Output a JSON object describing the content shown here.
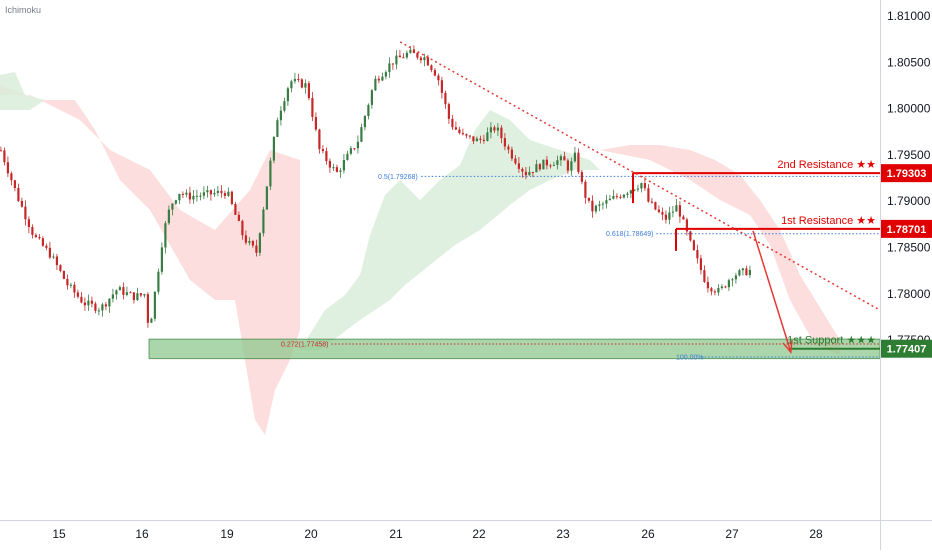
{
  "indicator_label": "Ichimoku",
  "chart_data": {
    "type": "candlestick",
    "x_ticks": [
      "15",
      "16",
      "19",
      "20",
      "21",
      "22",
      "23",
      "26",
      "27",
      "28"
    ],
    "y_ticks": [
      "1.81000",
      "1.80500",
      "1.80000",
      "1.79500",
      "1.79000",
      "1.78500",
      "1.78000",
      "1.77500"
    ],
    "ylim": [
      1.7707,
      1.8122
    ],
    "colors": {
      "up": "#26a69a",
      "up_body": "#3a7d44",
      "down": "#c62828",
      "resistance": "#e00000",
      "support": "#2e7d32",
      "support_zone": "#8fc98f",
      "fib_line": "#3b7ddd",
      "cloud_bear": "#fbd3d3",
      "cloud_bull": "#d8ecd8",
      "trendline": "#e53935"
    },
    "levels": [
      {
        "name": "2nd Resistance",
        "stars": "★★",
        "price": 1.79303,
        "price_label": "1.79303",
        "kind": "resistance"
      },
      {
        "name": "1st Resistance",
        "stars": "★★",
        "price": 1.78701,
        "price_label": "1.78701",
        "kind": "resistance"
      },
      {
        "name": "1st Support",
        "stars": "★★★",
        "price": 1.77407,
        "price_label": "1.77407",
        "kind": "support"
      }
    ],
    "fib_labels": [
      {
        "text": "0.5(1.79268)",
        "price": 1.79268
      },
      {
        "text": "0.618(1.78649)",
        "price": 1.78649
      },
      {
        "text": "0.272(1.77458)",
        "price": 1.77458
      },
      {
        "text": "100.00%",
        "price": 1.77318
      }
    ],
    "trendline": {
      "start": {
        "day": 21.05,
        "price": 1.8072
      },
      "end": {
        "day": 28.75,
        "price": 1.7783
      }
    },
    "arrow": {
      "start": {
        "day": 27.25,
        "price": 1.7868
      },
      "end": {
        "day": 27.7,
        "price": 1.7737
      }
    },
    "support_zone": {
      "top": 1.7751,
      "bottom": 1.773,
      "start_day": 16.25
    },
    "close_series": [
      {
        "day": 14.3,
        "price": 1.7955
      },
      {
        "day": 14.5,
        "price": 1.7905
      },
      {
        "day": 14.7,
        "price": 1.7862
      },
      {
        "day": 14.9,
        "price": 1.7842
      },
      {
        "day": 15.1,
        "price": 1.781
      },
      {
        "day": 15.3,
        "price": 1.779
      },
      {
        "day": 15.5,
        "price": 1.7784
      },
      {
        "day": 15.7,
        "price": 1.7805
      },
      {
        "day": 15.9,
        "price": 1.7797
      },
      {
        "day": 16.1,
        "price": 1.78
      },
      {
        "day": 16.25,
        "price": 1.776
      },
      {
        "day": 16.5,
        "price": 1.781
      },
      {
        "day": 16.75,
        "price": 1.7865
      },
      {
        "day": 17.0,
        "price": 1.7895
      },
      {
        "day": 17.3,
        "price": 1.791
      },
      {
        "day": 17.6,
        "price": 1.7905
      },
      {
        "day": 19.0,
        "price": 1.791
      },
      {
        "day": 19.2,
        "price": 1.786
      },
      {
        "day": 19.35,
        "price": 1.7845
      },
      {
        "day": 19.6,
        "price": 1.799
      },
      {
        "day": 19.75,
        "price": 1.803
      },
      {
        "day": 19.95,
        "price": 1.8025
      },
      {
        "day": 20.1,
        "price": 1.7955
      },
      {
        "day": 20.3,
        "price": 1.793
      },
      {
        "day": 20.55,
        "price": 1.7965
      },
      {
        "day": 20.75,
        "price": 1.803
      },
      {
        "day": 20.95,
        "price": 1.805
      },
      {
        "day": 21.15,
        "price": 1.806
      },
      {
        "day": 21.35,
        "price": 1.8055
      },
      {
        "day": 21.5,
        "price": 1.8035
      },
      {
        "day": 21.65,
        "price": 1.7985
      },
      {
        "day": 21.8,
        "price": 1.797
      },
      {
        "day": 22.0,
        "price": 1.7965
      },
      {
        "day": 22.2,
        "price": 1.798
      },
      {
        "day": 22.35,
        "price": 1.7955
      },
      {
        "day": 22.55,
        "price": 1.793
      },
      {
        "day": 22.75,
        "price": 1.794
      },
      {
        "day": 23.0,
        "price": 1.7945
      },
      {
        "day": 23.2,
        "price": 1.7935
      },
      {
        "day": 23.45,
        "price": 1.795
      },
      {
        "day": 23.6,
        "price": 1.7925
      },
      {
        "day": 23.8,
        "price": 1.7905
      },
      {
        "day": 24.0,
        "price": 1.789
      },
      {
        "day": 25.8,
        "price": 1.792
      },
      {
        "day": 26.0,
        "price": 1.79
      },
      {
        "day": 26.2,
        "price": 1.788
      },
      {
        "day": 26.35,
        "price": 1.7895
      },
      {
        "day": 26.5,
        "price": 1.7855
      },
      {
        "day": 26.7,
        "price": 1.781
      },
      {
        "day": 26.85,
        "price": 1.7802
      },
      {
        "day": 27.0,
        "price": 1.782
      },
      {
        "day": 27.25,
        "price": 1.7826
      }
    ]
  }
}
